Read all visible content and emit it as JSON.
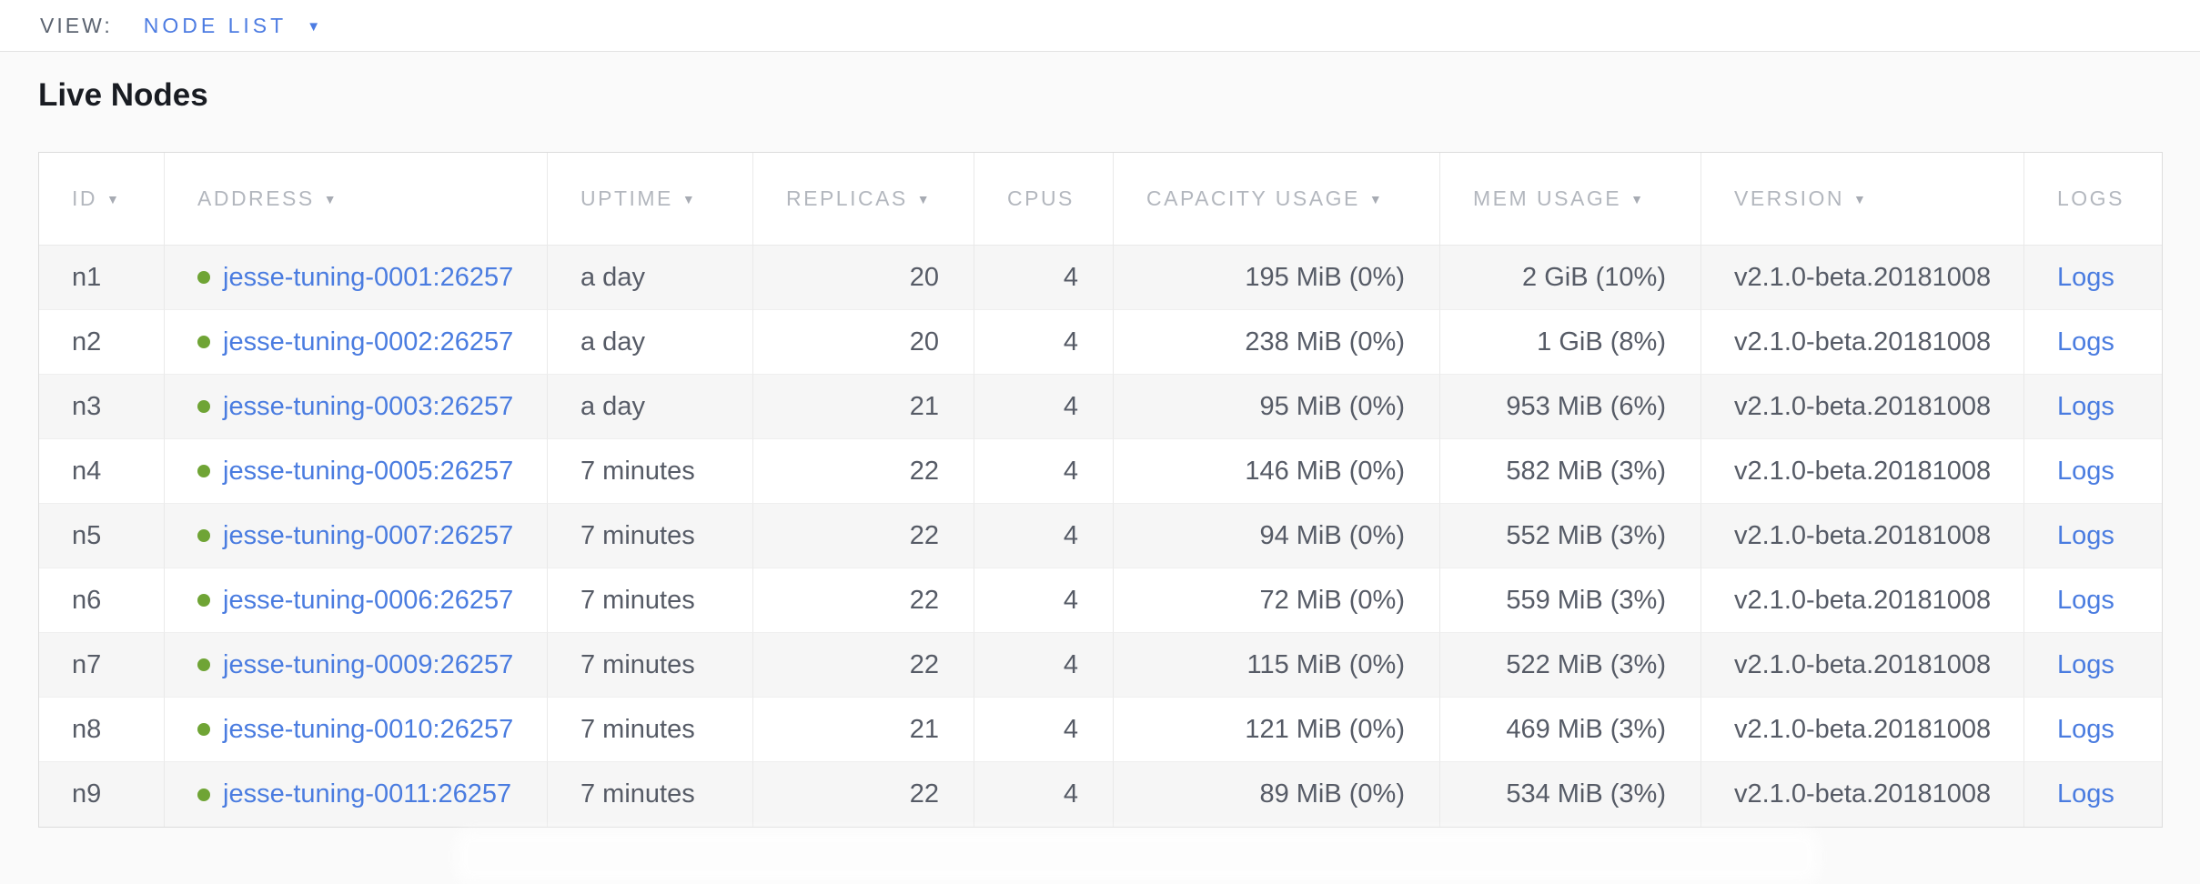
{
  "view_bar": {
    "label": "VIEW:",
    "selected_view": "NODE LIST",
    "caret_icon": "▼"
  },
  "page": {
    "title": "Live Nodes"
  },
  "colors": {
    "accent_blue": "#4d7ce2",
    "link_blue": "#4a7ce0",
    "live_green": "#6fa435",
    "header_gray": "#b3b7be",
    "cell_gray": "#565b66",
    "stripe_gray": "#f6f6f6"
  },
  "table": {
    "sort_icon": "▼",
    "columns": [
      {
        "label": "ID",
        "field": "id",
        "sortable": true,
        "align": "left"
      },
      {
        "label": "ADDRESS",
        "field": "address",
        "sortable": true,
        "align": "left"
      },
      {
        "label": "UPTIME",
        "field": "uptime",
        "sortable": true,
        "align": "left"
      },
      {
        "label": "REPLICAS",
        "field": "replicas",
        "sortable": true,
        "align": "right"
      },
      {
        "label": "CPUS",
        "field": "cpus",
        "sortable": false,
        "align": "right"
      },
      {
        "label": "CAPACITY USAGE",
        "field": "capacity_usage",
        "sortable": true,
        "align": "right"
      },
      {
        "label": "MEM USAGE",
        "field": "mem_usage",
        "sortable": true,
        "align": "right"
      },
      {
        "label": "VERSION",
        "field": "version",
        "sortable": true,
        "align": "left"
      },
      {
        "label": "LOGS",
        "field": "logs",
        "sortable": false,
        "align": "left"
      }
    ],
    "rows": [
      {
        "id": "n1",
        "status": "live",
        "address": "jesse-tuning-0001:26257",
        "uptime": "a day",
        "replicas": "20",
        "cpus": "4",
        "capacity_usage": "195 MiB (0%)",
        "mem_usage": "2 GiB (10%)",
        "version": "v2.1.0-beta.20181008",
        "logs": "Logs"
      },
      {
        "id": "n2",
        "status": "live",
        "address": "jesse-tuning-0002:26257",
        "uptime": "a day",
        "replicas": "20",
        "cpus": "4",
        "capacity_usage": "238 MiB (0%)",
        "mem_usage": "1 GiB (8%)",
        "version": "v2.1.0-beta.20181008",
        "logs": "Logs"
      },
      {
        "id": "n3",
        "status": "live",
        "address": "jesse-tuning-0003:26257",
        "uptime": "a day",
        "replicas": "21",
        "cpus": "4",
        "capacity_usage": "95 MiB (0%)",
        "mem_usage": "953 MiB (6%)",
        "version": "v2.1.0-beta.20181008",
        "logs": "Logs"
      },
      {
        "id": "n4",
        "status": "live",
        "address": "jesse-tuning-0005:26257",
        "uptime": "7 minutes",
        "replicas": "22",
        "cpus": "4",
        "capacity_usage": "146 MiB (0%)",
        "mem_usage": "582 MiB (3%)",
        "version": "v2.1.0-beta.20181008",
        "logs": "Logs"
      },
      {
        "id": "n5",
        "status": "live",
        "address": "jesse-tuning-0007:26257",
        "uptime": "7 minutes",
        "replicas": "22",
        "cpus": "4",
        "capacity_usage": "94 MiB (0%)",
        "mem_usage": "552 MiB (3%)",
        "version": "v2.1.0-beta.20181008",
        "logs": "Logs"
      },
      {
        "id": "n6",
        "status": "live",
        "address": "jesse-tuning-0006:26257",
        "uptime": "7 minutes",
        "replicas": "22",
        "cpus": "4",
        "capacity_usage": "72 MiB (0%)",
        "mem_usage": "559 MiB (3%)",
        "version": "v2.1.0-beta.20181008",
        "logs": "Logs"
      },
      {
        "id": "n7",
        "status": "live",
        "address": "jesse-tuning-0009:26257",
        "uptime": "7 minutes",
        "replicas": "22",
        "cpus": "4",
        "capacity_usage": "115 MiB (0%)",
        "mem_usage": "522 MiB (3%)",
        "version": "v2.1.0-beta.20181008",
        "logs": "Logs"
      },
      {
        "id": "n8",
        "status": "live",
        "address": "jesse-tuning-0010:26257",
        "uptime": "7 minutes",
        "replicas": "21",
        "cpus": "4",
        "capacity_usage": "121 MiB (0%)",
        "mem_usage": "469 MiB (3%)",
        "version": "v2.1.0-beta.20181008",
        "logs": "Logs"
      },
      {
        "id": "n9",
        "status": "live",
        "address": "jesse-tuning-0011:26257",
        "uptime": "7 minutes",
        "replicas": "22",
        "cpus": "4",
        "capacity_usage": "89 MiB (0%)",
        "mem_usage": "534 MiB (3%)",
        "version": "v2.1.0-beta.20181008",
        "logs": "Logs"
      }
    ]
  }
}
